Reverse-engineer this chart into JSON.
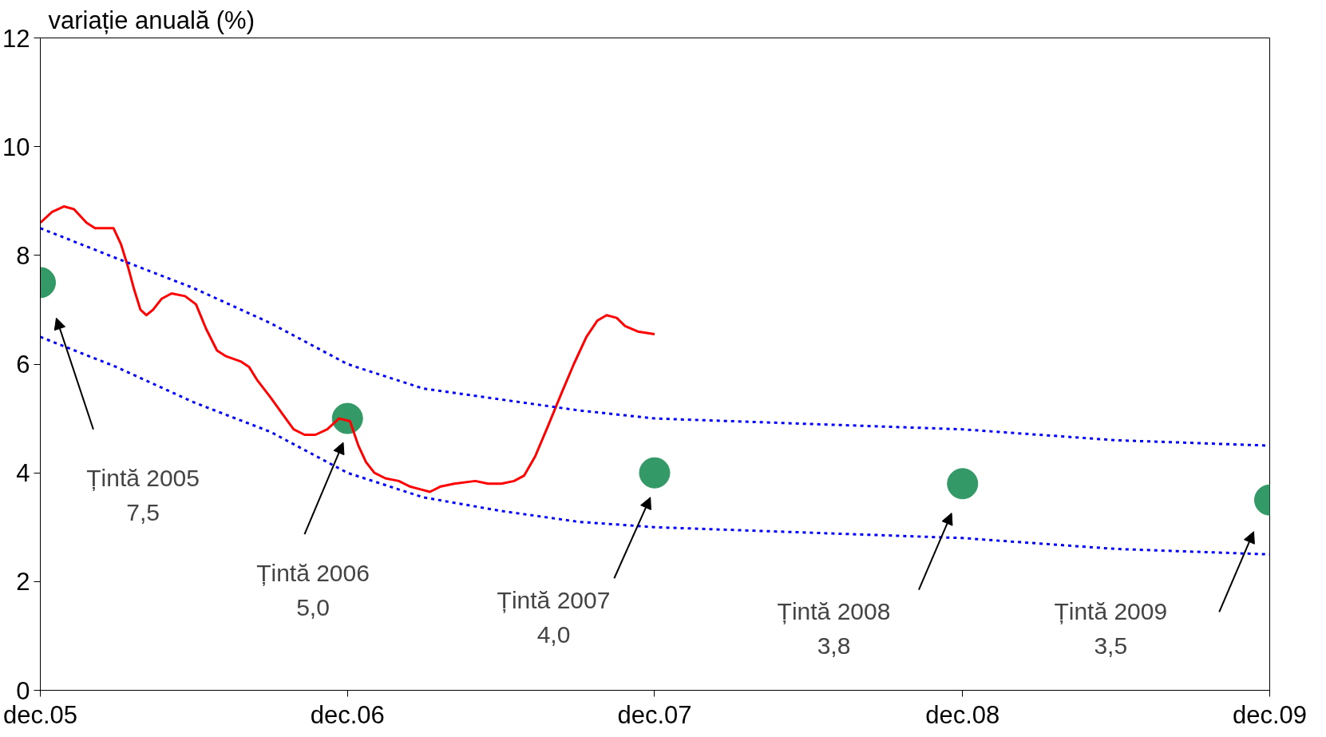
{
  "chart_data": {
    "type": "line",
    "ylabel": "variație anuală (%)",
    "xlim": [
      "2005-12",
      "2009-12"
    ],
    "xticks": [
      {
        "value": "2005-12",
        "label": "dec.05"
      },
      {
        "value": "2006-12",
        "label": "dec.06"
      },
      {
        "value": "2007-12",
        "label": "dec.07"
      },
      {
        "value": "2008-12",
        "label": "dec.08"
      },
      {
        "value": "2009-12",
        "label": "dec.09"
      }
    ],
    "ylim": [
      0,
      12
    ],
    "yticks": [
      0,
      2,
      4,
      6,
      8,
      10,
      12
    ],
    "grid": false,
    "series": [
      {
        "line_style": "solid",
        "color": "#ff0000",
        "x": [
          "2005-12-01",
          "2005-12-15",
          "2005-12-29",
          "2006-01-10",
          "2006-01-25",
          "2006-02-04",
          "2006-02-19",
          "2006-02-26",
          "2006-03-07",
          "2006-03-15",
          "2006-03-22",
          "2006-03-30",
          "2006-04-06",
          "2006-04-14",
          "2006-04-24",
          "2006-05-06",
          "2006-05-22",
          "2006-06-04",
          "2006-06-16",
          "2006-06-29",
          "2006-07-09",
          "2006-07-27",
          "2006-08-06",
          "2006-08-16",
          "2006-08-31",
          "2006-09-14",
          "2006-09-28",
          "2006-10-11",
          "2006-10-24",
          "2006-11-07",
          "2006-11-21",
          "2006-12-04",
          "2006-12-14",
          "2006-12-23",
          "2007-01-02",
          "2007-01-15",
          "2007-01-31",
          "2007-02-13",
          "2007-02-25",
          "2007-03-09",
          "2007-03-22",
          "2007-04-07",
          "2007-05-02",
          "2007-05-17",
          "2007-06-02",
          "2007-06-17",
          "2007-06-29",
          "2007-07-12",
          "2007-07-27",
          "2007-08-12",
          "2007-08-27",
          "2007-09-11",
          "2007-09-24",
          "2007-10-05",
          "2007-10-17",
          "2007-10-27",
          "2007-11-11",
          "2007-12-01"
        ],
        "values": [
          8.6,
          8.8,
          8.9,
          8.85,
          8.6,
          8.5,
          8.5,
          8.5,
          8.2,
          7.8,
          7.4,
          7.0,
          6.9,
          7.0,
          7.2,
          7.3,
          7.25,
          7.1,
          6.65,
          6.25,
          6.15,
          6.05,
          5.95,
          5.7,
          5.4,
          5.1,
          4.8,
          4.7,
          4.7,
          4.8,
          5.0,
          4.95,
          4.5,
          4.2,
          4.0,
          3.9,
          3.85,
          3.75,
          3.7,
          3.65,
          3.75,
          3.8,
          3.85,
          3.8,
          3.8,
          3.85,
          3.95,
          4.3,
          4.85,
          5.45,
          6.0,
          6.5,
          6.8,
          6.9,
          6.85,
          6.7,
          6.6,
          6.55
        ]
      },
      {
        "type": "line",
        "line_style": "dotted",
        "color": "#0000ff",
        "x": [
          "2005-12",
          "2006-03",
          "2006-06",
          "2006-09",
          "2006-12",
          "2007-03",
          "2007-06",
          "2007-09",
          "2007-12",
          "2008-06",
          "2008-12",
          "2009-06",
          "2009-12"
        ],
        "values": [
          8.5,
          7.95,
          7.4,
          6.75,
          6.0,
          5.55,
          5.35,
          5.15,
          5.0,
          4.9,
          4.8,
          4.6,
          4.5
        ]
      },
      {
        "type": "line",
        "line_style": "dotted",
        "color": "#0000ff",
        "x": [
          "2005-12",
          "2006-03",
          "2006-06",
          "2006-09",
          "2006-12",
          "2007-03",
          "2007-06",
          "2007-09",
          "2007-12",
          "2008-06",
          "2008-12",
          "2009-06",
          "2009-12"
        ],
        "values": [
          6.5,
          5.95,
          5.3,
          4.75,
          4.0,
          3.55,
          3.3,
          3.1,
          3.0,
          2.9,
          2.8,
          2.6,
          2.5
        ]
      },
      {
        "type": "scatter",
        "marker": "circle",
        "color": "#339966",
        "x": [
          "2005-12",
          "2006-12",
          "2007-12",
          "2008-12",
          "2009-12"
        ],
        "values": [
          7.5,
          5.0,
          4.0,
          3.8,
          3.5
        ]
      }
    ],
    "annotations": [
      "Țintă 2005\n7,5",
      "Țintă 2006\n5,0",
      "Țintă 2007\n4,0",
      "Țintă 2008\n3,8",
      "Țintă 2009\n3,5"
    ]
  }
}
